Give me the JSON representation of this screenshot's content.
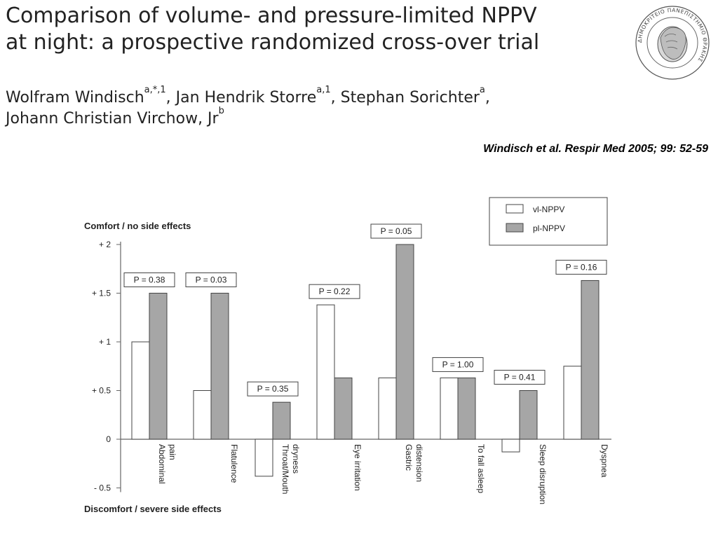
{
  "header": {
    "title_line1": "Comparison of volume- and pressure-limited NPPV",
    "title_line2": "at night: a prospective randomized cross-over trial",
    "authors": [
      {
        "name": "Wolfram Windisch",
        "sup": "a,*,1",
        "sep": ", "
      },
      {
        "name": "Jan Hendrik Storre",
        "sup": "a,1",
        "sep": ", "
      },
      {
        "name": "Stephan Sorichter",
        "sup": "a",
        "sep": ","
      },
      {
        "name": "Johann Christian Virchow, Jr",
        "sup": "b",
        "sep": ""
      }
    ],
    "citation": "Windisch et al. Respir Med 2005; 99: 52-59"
  },
  "seal": {
    "text": "ΔΗΜΟΚΡΙΤΕΙΟ ΠΑΝΕΠΙΣΤΗΜΙΟ ΘΡΑΚΗΣ",
    "icon": "university-seal-icon"
  },
  "chart_data": {
    "type": "bar",
    "top_label": "Comfort / no side effects",
    "bottom_label": "Discomfort / severe side effects",
    "categories": [
      [
        "Abdominal",
        "pain"
      ],
      [
        "Flatulence"
      ],
      [
        "Throat/Mouth",
        "dryness"
      ],
      [
        "Eye irritation"
      ],
      [
        "Gastric",
        "distension"
      ],
      [
        "To fall asleep"
      ],
      [
        "Sleep disruption"
      ],
      [
        "Dyspnea"
      ]
    ],
    "series": [
      {
        "name": "vl-NPPV",
        "color": "#ffffff",
        "values": [
          1.0,
          0.5,
          -0.38,
          1.38,
          0.63,
          0.63,
          -0.13,
          0.75
        ]
      },
      {
        "name": "pl-NPPV",
        "color": "#a6a6a6",
        "values": [
          1.5,
          1.5,
          0.38,
          0.63,
          2.0,
          0.63,
          0.5,
          1.63
        ]
      }
    ],
    "p_values": [
      "P = 0.38",
      "P = 0.03",
      "P = 0.35",
      "P = 0.22",
      "P = 0.05",
      "P = 1.00",
      "P = 0.41",
      "P = 0.16"
    ],
    "yticks": [
      2,
      1.5,
      1,
      0.5,
      0,
      -0.5
    ],
    "ytick_labels": [
      "+ 2",
      "+ 1.5",
      "+ 1",
      "+ 0.5",
      "0",
      "- 0.5"
    ],
    "ylim": [
      -0.5,
      2
    ],
    "legend_position": "top-right",
    "grid": false
  }
}
